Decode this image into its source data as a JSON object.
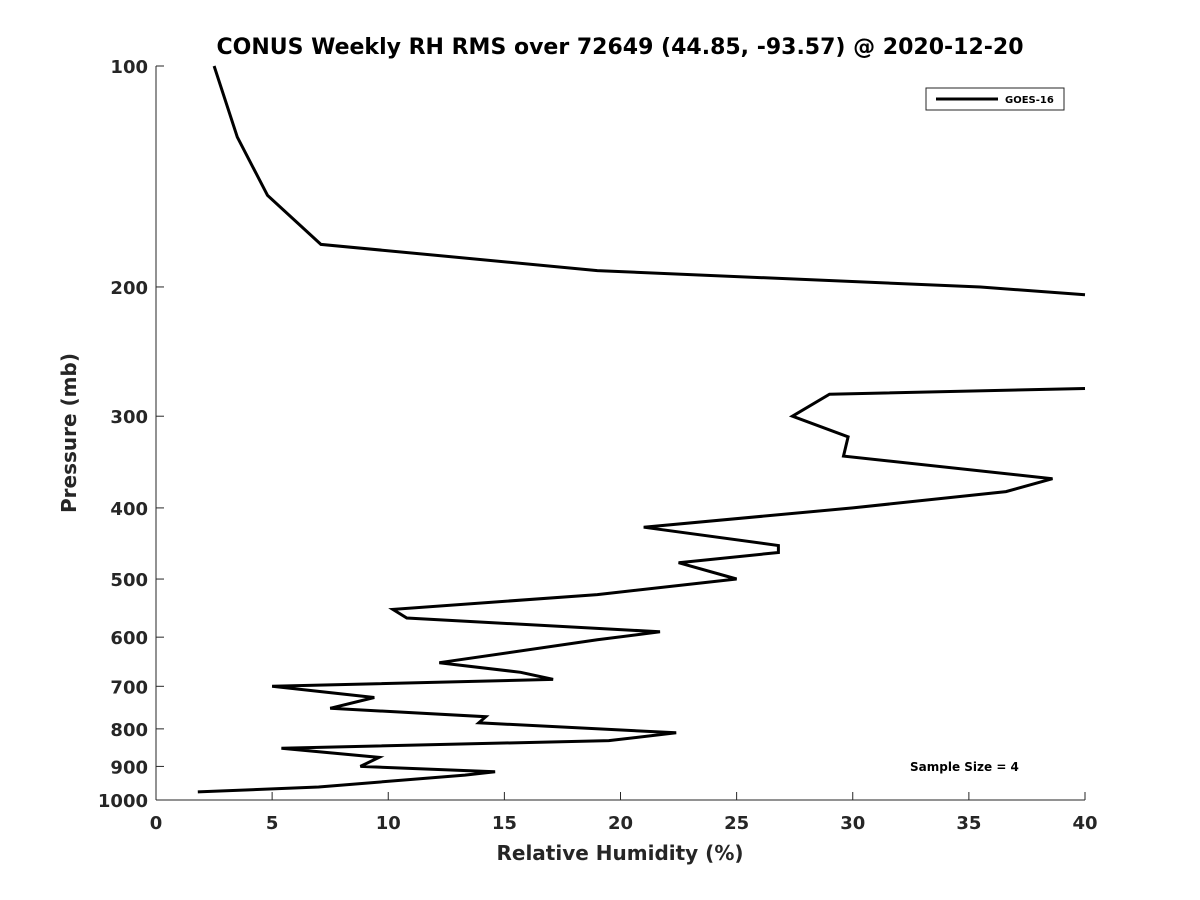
{
  "chart_data": {
    "type": "line",
    "title": "CONUS Weekly RH RMS over 72649 (44.85, -93.57) @ 2020-12-20",
    "xlabel": "Relative Humidity (%)",
    "ylabel": "Pressure (mb)",
    "xlim": [
      0,
      40
    ],
    "ylim": [
      100,
      1000
    ],
    "y_scale": "log",
    "y_reversed": true,
    "x_ticks": [
      0,
      5,
      10,
      15,
      20,
      25,
      30,
      35,
      40
    ],
    "y_ticks": [
      100,
      200,
      300,
      400,
      500,
      600,
      700,
      800,
      900,
      1000
    ],
    "grid": false,
    "legend_position": "top-right",
    "annotation": "Sample Size = 4",
    "series": [
      {
        "name": "GOES-16",
        "color": "#000000",
        "segments": [
          [
            [
              2.5,
              100
            ],
            [
              3.5,
              125
            ],
            [
              4.8,
              150
            ],
            [
              7.1,
              175
            ],
            [
              19.0,
              190
            ],
            [
              35.5,
              200
            ],
            [
              40.0,
              205
            ]
          ],
          [
            [
              40.0,
              275
            ],
            [
              29.0,
              280
            ],
            [
              27.4,
              300
            ],
            [
              29.8,
              320
            ],
            [
              29.6,
              340
            ],
            [
              38.6,
              365
            ],
            [
              36.6,
              380
            ],
            [
              30.0,
              400
            ],
            [
              21.0,
              425
            ],
            [
              26.8,
              450
            ],
            [
              26.8,
              460
            ],
            [
              22.5,
              475
            ],
            [
              25.0,
              500
            ],
            [
              19.0,
              525
            ],
            [
              10.2,
              550
            ],
            [
              10.8,
              565
            ],
            [
              21.7,
              590
            ],
            [
              19.0,
              605
            ],
            [
              12.2,
              650
            ],
            [
              15.7,
              670
            ],
            [
              17.1,
              685
            ],
            [
              5.0,
              700
            ],
            [
              9.4,
              725
            ],
            [
              7.5,
              750
            ],
            [
              14.2,
              770
            ],
            [
              13.9,
              785
            ],
            [
              22.4,
              810
            ],
            [
              19.5,
              830
            ],
            [
              5.4,
              850
            ],
            [
              9.6,
              875
            ],
            [
              8.8,
              900
            ],
            [
              14.6,
              915
            ],
            [
              13.3,
              925
            ],
            [
              7.0,
              960
            ],
            [
              1.8,
              975
            ]
          ]
        ]
      }
    ]
  }
}
